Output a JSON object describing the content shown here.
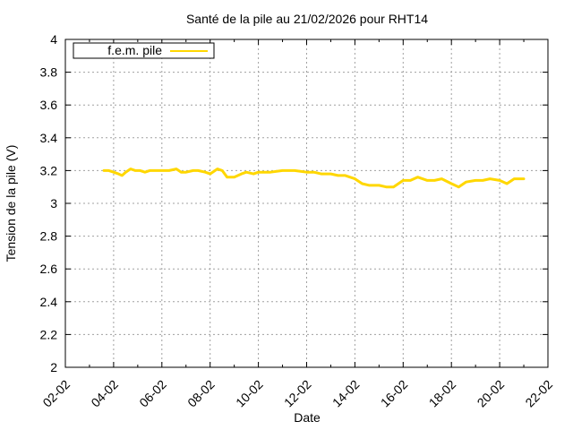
{
  "chart_data": {
    "type": "line",
    "title": "Santé de la pile au 21/02/2026 pour RHT14",
    "xlabel": "Date",
    "ylabel": "Tension de la pile (V)",
    "x_ticks": [
      "02-02",
      "04-02",
      "06-02",
      "08-02",
      "10-02",
      "12-02",
      "14-02",
      "16-02",
      "18-02",
      "20-02",
      "22-02"
    ],
    "x_range_days": [
      2,
      22
    ],
    "y_ticks": [
      "2",
      "2.2",
      "2.4",
      "2.6",
      "2.8",
      "3",
      "3.2",
      "3.4",
      "3.6",
      "3.8",
      "4"
    ],
    "ylim": [
      2,
      4
    ],
    "grid": true,
    "legend_position": "top-left",
    "series": [
      {
        "name": "f.e.m. pile",
        "color": "#ffd700",
        "x": [
          3.6,
          3.8,
          4.0,
          4.2,
          4.35,
          4.5,
          4.7,
          4.9,
          5.1,
          5.3,
          5.5,
          5.8,
          6.0,
          6.3,
          6.6,
          6.8,
          7.0,
          7.3,
          7.5,
          7.8,
          8.0,
          8.3,
          8.5,
          8.7,
          9.0,
          9.3,
          9.5,
          9.8,
          10.0,
          10.5,
          11.0,
          11.5,
          12.0,
          12.3,
          12.6,
          13.0,
          13.3,
          13.6,
          14.0,
          14.3,
          14.6,
          15.0,
          15.3,
          15.6,
          16.0,
          16.3,
          16.6,
          17.0,
          17.3,
          17.6,
          18.0,
          18.3,
          18.6,
          19.0,
          19.3,
          19.6,
          20.0,
          20.3,
          20.6,
          21.0
        ],
        "y": [
          3.2,
          3.2,
          3.19,
          3.18,
          3.17,
          3.19,
          3.21,
          3.2,
          3.2,
          3.19,
          3.2,
          3.2,
          3.2,
          3.2,
          3.21,
          3.19,
          3.19,
          3.2,
          3.2,
          3.19,
          3.18,
          3.21,
          3.2,
          3.16,
          3.16,
          3.18,
          3.19,
          3.18,
          3.19,
          3.19,
          3.2,
          3.2,
          3.19,
          3.19,
          3.18,
          3.18,
          3.17,
          3.17,
          3.15,
          3.12,
          3.11,
          3.11,
          3.1,
          3.1,
          3.14,
          3.14,
          3.16,
          3.14,
          3.14,
          3.15,
          3.12,
          3.1,
          3.13,
          3.14,
          3.14,
          3.15,
          3.14,
          3.12,
          3.15,
          3.15
        ]
      }
    ]
  }
}
